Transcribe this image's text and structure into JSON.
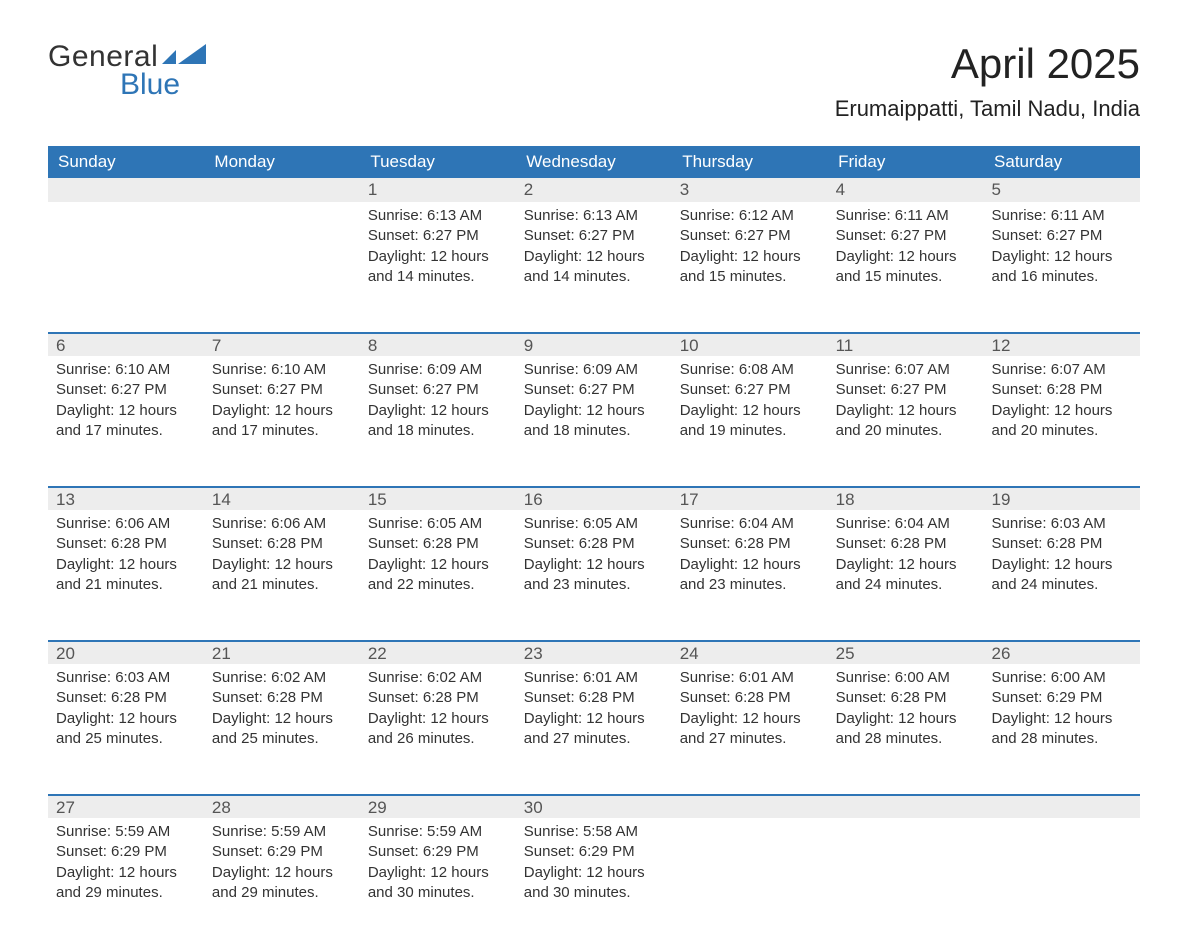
{
  "logo": {
    "text1": "General",
    "text2": "Blue",
    "flag_color": "#2e75b6"
  },
  "title": "April 2025",
  "location": "Erumaippatti, Tamil Nadu, India",
  "theme": {
    "header_bg": "#2e75b6",
    "header_fg": "#ffffff",
    "daynum_bg": "#ededed",
    "rule_color": "#2e75b6",
    "body_fg": "#333333",
    "page_bg": "#ffffff",
    "title_fontsize": 42,
    "location_fontsize": 22,
    "th_fontsize": 17,
    "body_fontsize": 15
  },
  "weekdays": [
    "Sunday",
    "Monday",
    "Tuesday",
    "Wednesday",
    "Thursday",
    "Friday",
    "Saturday"
  ],
  "weeks": [
    [
      null,
      null,
      {
        "n": "1",
        "sunrise": "6:13 AM",
        "sunset": "6:27 PM",
        "daylight": "12 hours and 14 minutes."
      },
      {
        "n": "2",
        "sunrise": "6:13 AM",
        "sunset": "6:27 PM",
        "daylight": "12 hours and 14 minutes."
      },
      {
        "n": "3",
        "sunrise": "6:12 AM",
        "sunset": "6:27 PM",
        "daylight": "12 hours and 15 minutes."
      },
      {
        "n": "4",
        "sunrise": "6:11 AM",
        "sunset": "6:27 PM",
        "daylight": "12 hours and 15 minutes."
      },
      {
        "n": "5",
        "sunrise": "6:11 AM",
        "sunset": "6:27 PM",
        "daylight": "12 hours and 16 minutes."
      }
    ],
    [
      {
        "n": "6",
        "sunrise": "6:10 AM",
        "sunset": "6:27 PM",
        "daylight": "12 hours and 17 minutes."
      },
      {
        "n": "7",
        "sunrise": "6:10 AM",
        "sunset": "6:27 PM",
        "daylight": "12 hours and 17 minutes."
      },
      {
        "n": "8",
        "sunrise": "6:09 AM",
        "sunset": "6:27 PM",
        "daylight": "12 hours and 18 minutes."
      },
      {
        "n": "9",
        "sunrise": "6:09 AM",
        "sunset": "6:27 PM",
        "daylight": "12 hours and 18 minutes."
      },
      {
        "n": "10",
        "sunrise": "6:08 AM",
        "sunset": "6:27 PM",
        "daylight": "12 hours and 19 minutes."
      },
      {
        "n": "11",
        "sunrise": "6:07 AM",
        "sunset": "6:27 PM",
        "daylight": "12 hours and 20 minutes."
      },
      {
        "n": "12",
        "sunrise": "6:07 AM",
        "sunset": "6:28 PM",
        "daylight": "12 hours and 20 minutes."
      }
    ],
    [
      {
        "n": "13",
        "sunrise": "6:06 AM",
        "sunset": "6:28 PM",
        "daylight": "12 hours and 21 minutes."
      },
      {
        "n": "14",
        "sunrise": "6:06 AM",
        "sunset": "6:28 PM",
        "daylight": "12 hours and 21 minutes."
      },
      {
        "n": "15",
        "sunrise": "6:05 AM",
        "sunset": "6:28 PM",
        "daylight": "12 hours and 22 minutes."
      },
      {
        "n": "16",
        "sunrise": "6:05 AM",
        "sunset": "6:28 PM",
        "daylight": "12 hours and 23 minutes."
      },
      {
        "n": "17",
        "sunrise": "6:04 AM",
        "sunset": "6:28 PM",
        "daylight": "12 hours and 23 minutes."
      },
      {
        "n": "18",
        "sunrise": "6:04 AM",
        "sunset": "6:28 PM",
        "daylight": "12 hours and 24 minutes."
      },
      {
        "n": "19",
        "sunrise": "6:03 AM",
        "sunset": "6:28 PM",
        "daylight": "12 hours and 24 minutes."
      }
    ],
    [
      {
        "n": "20",
        "sunrise": "6:03 AM",
        "sunset": "6:28 PM",
        "daylight": "12 hours and 25 minutes."
      },
      {
        "n": "21",
        "sunrise": "6:02 AM",
        "sunset": "6:28 PM",
        "daylight": "12 hours and 25 minutes."
      },
      {
        "n": "22",
        "sunrise": "6:02 AM",
        "sunset": "6:28 PM",
        "daylight": "12 hours and 26 minutes."
      },
      {
        "n": "23",
        "sunrise": "6:01 AM",
        "sunset": "6:28 PM",
        "daylight": "12 hours and 27 minutes."
      },
      {
        "n": "24",
        "sunrise": "6:01 AM",
        "sunset": "6:28 PM",
        "daylight": "12 hours and 27 minutes."
      },
      {
        "n": "25",
        "sunrise": "6:00 AM",
        "sunset": "6:28 PM",
        "daylight": "12 hours and 28 minutes."
      },
      {
        "n": "26",
        "sunrise": "6:00 AM",
        "sunset": "6:29 PM",
        "daylight": "12 hours and 28 minutes."
      }
    ],
    [
      {
        "n": "27",
        "sunrise": "5:59 AM",
        "sunset": "6:29 PM",
        "daylight": "12 hours and 29 minutes."
      },
      {
        "n": "28",
        "sunrise": "5:59 AM",
        "sunset": "6:29 PM",
        "daylight": "12 hours and 29 minutes."
      },
      {
        "n": "29",
        "sunrise": "5:59 AM",
        "sunset": "6:29 PM",
        "daylight": "12 hours and 30 minutes."
      },
      {
        "n": "30",
        "sunrise": "5:58 AM",
        "sunset": "6:29 PM",
        "daylight": "12 hours and 30 minutes."
      },
      null,
      null,
      null
    ]
  ],
  "labels": {
    "sunrise": "Sunrise:",
    "sunset": "Sunset:",
    "daylight": "Daylight:"
  }
}
